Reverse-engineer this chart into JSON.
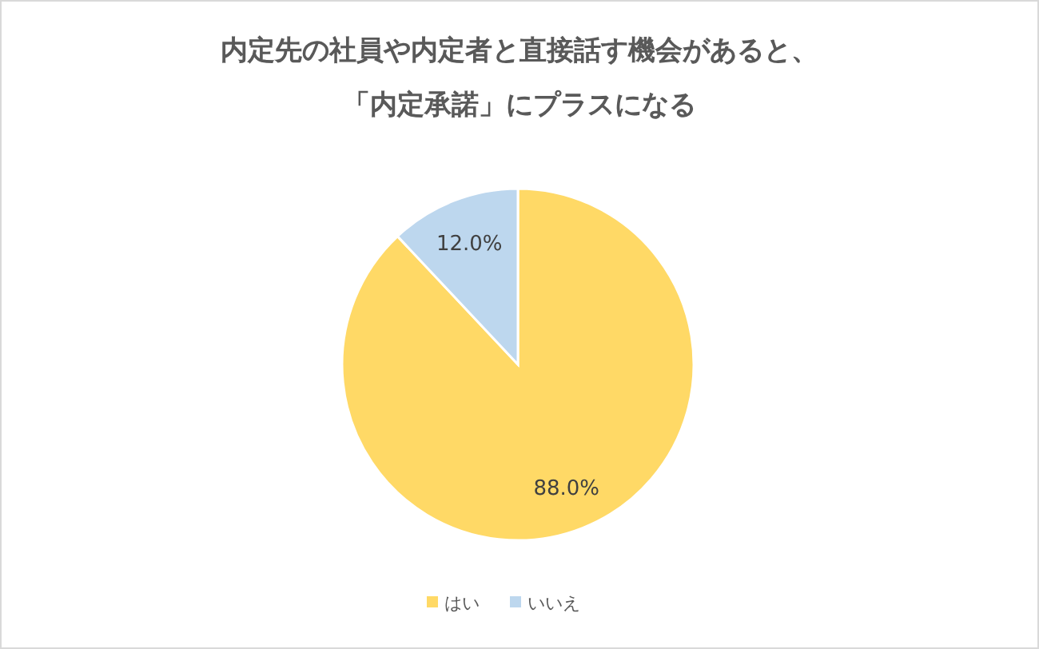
{
  "chart_data": {
    "type": "pie",
    "title": "内定先の社員や内定者と直接話す機会があると、",
    "subtitle": "「内定承諾」にプラスになる",
    "categories": [
      "はい",
      "いいえ"
    ],
    "values": [
      88.0,
      12.0
    ],
    "colors": [
      "#ffd966",
      "#bdd7ee"
    ],
    "value_labels": [
      "88.0%",
      "12.0%"
    ],
    "legend": "bottom"
  }
}
